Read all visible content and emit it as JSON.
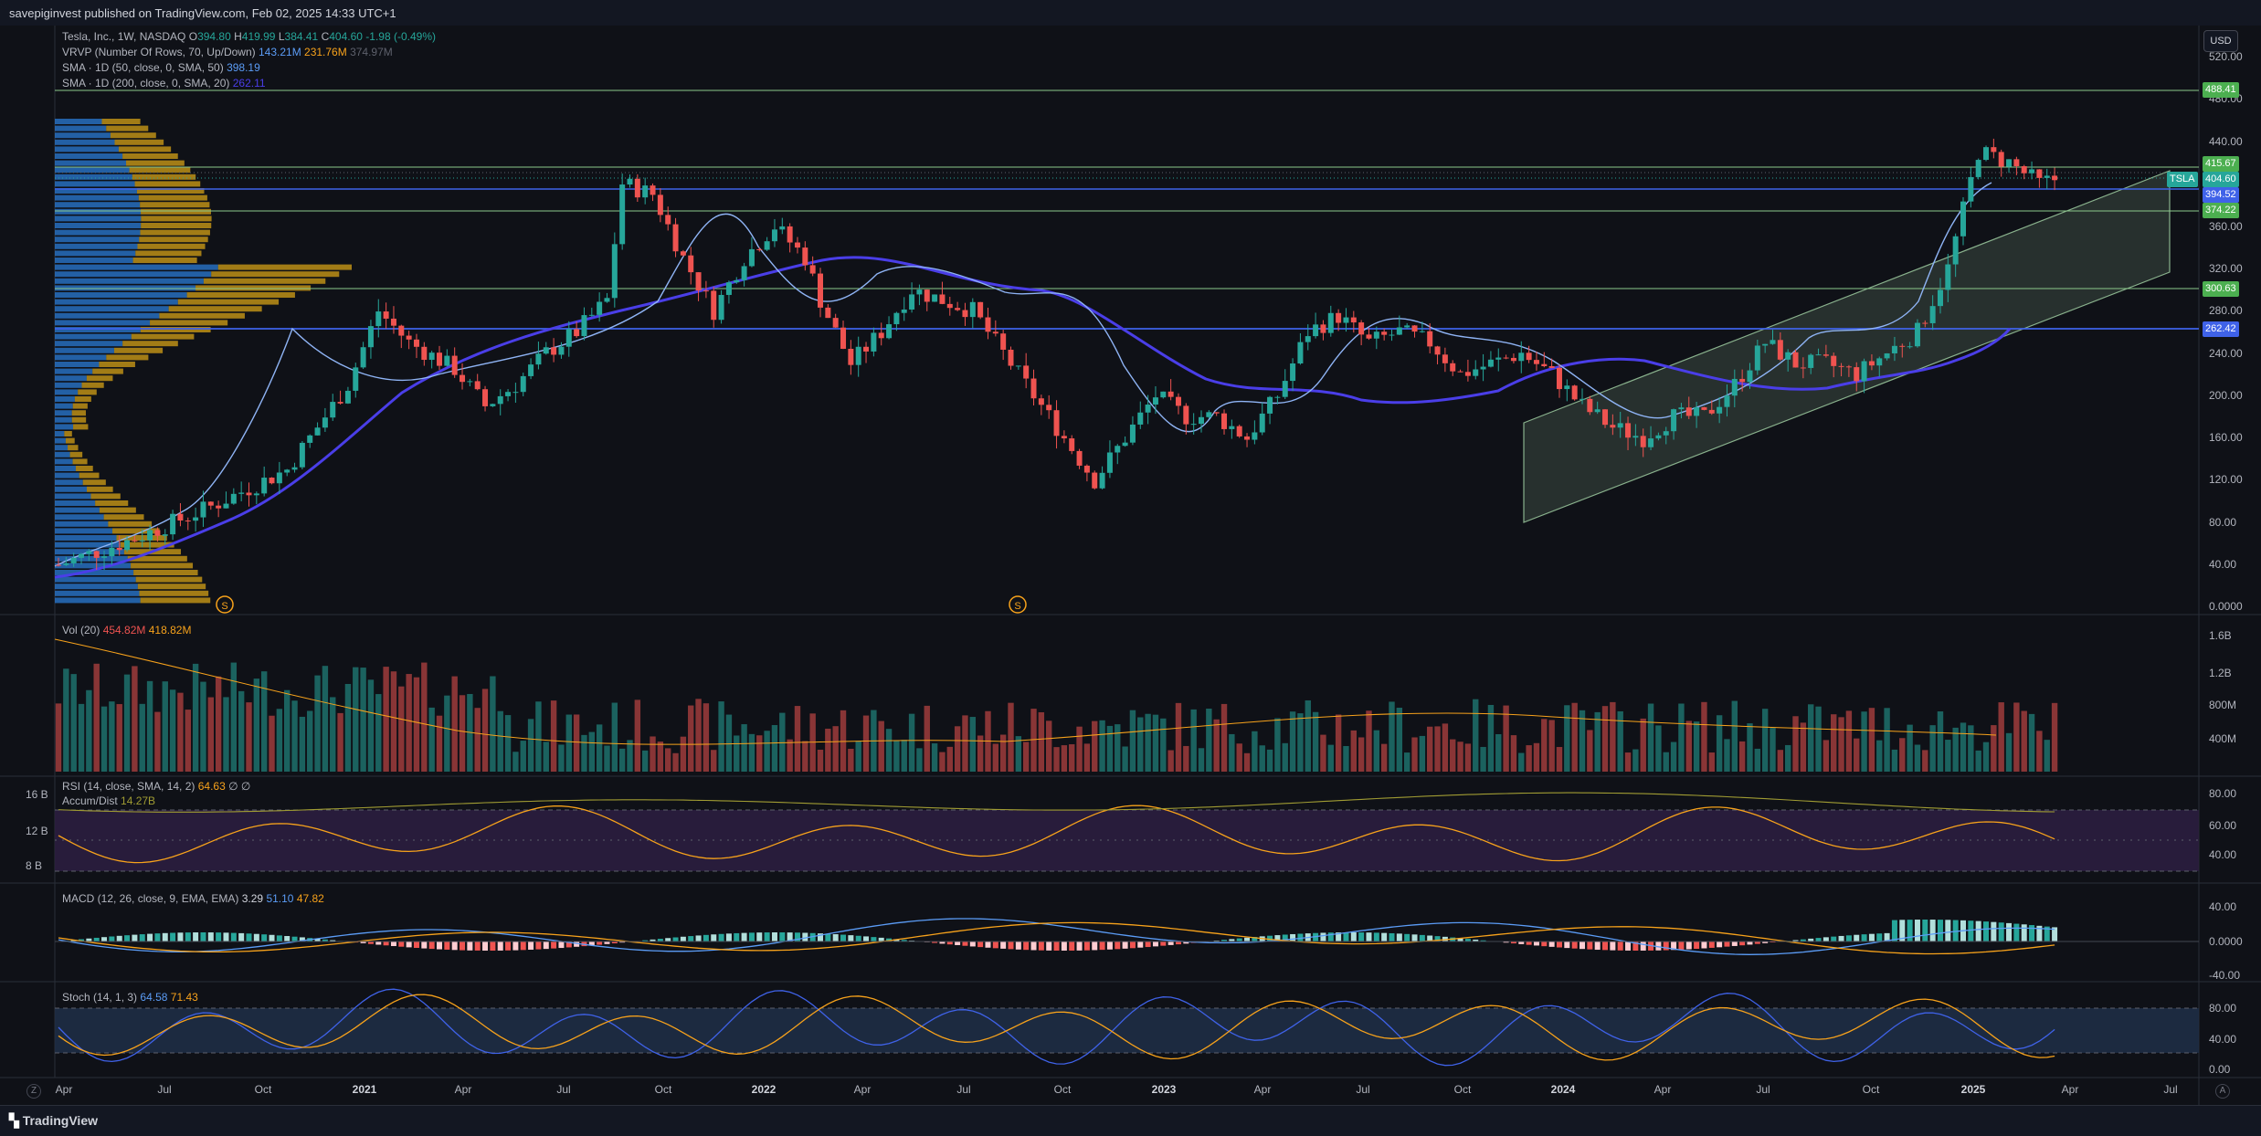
{
  "header": {
    "published": "savepiginvest published on TradingView.com, Feb 02, 2025 14:33 UTC+1"
  },
  "legend": {
    "symbol": "Tesla, Inc., 1W, NASDAQ",
    "open_label": "O",
    "open": "394.80",
    "high_label": "H",
    "high": "419.99",
    "low_label": "L",
    "low": "384.41",
    "close_label": "C",
    "close": "404.60",
    "change": "-1.98 (-0.49%)",
    "vrvp": "VRVP (Number Of Rows, 70, Up/Down)",
    "vrvp_v1": "143.21M",
    "vrvp_v2": "231.76M",
    "vrvp_v3": "374.97M",
    "sma50": "SMA · 1D (50, close, 0, SMA, 50)",
    "sma50_val": "398.19",
    "sma200": "SMA · 1D (200, close, 0, SMA, 20)",
    "sma200_val": "262.11"
  },
  "currency": "USD",
  "price_axis": [
    "520.00",
    "480.00",
    "440.00",
    "360.00",
    "320.00",
    "280.00",
    "240.00",
    "200.00",
    "160.00",
    "120.00",
    "80.00",
    "40.00",
    "0.0000"
  ],
  "price_tags": {
    "t488": "488.41",
    "t415": "415.67",
    "tsla": "TSLA",
    "t404": "404.60",
    "t394": "394.52",
    "t374": "374.22",
    "t300": "300.63",
    "t262": "262.42"
  },
  "colors": {
    "green": "#26a69a",
    "red": "#ef5350",
    "sma_fast": "#5b9cf6",
    "sma_slow": "#4a3ee8",
    "level_green": "#8bc98b",
    "level_blue": "#3f62e8",
    "channel": "#a5d6a7"
  },
  "dividend_icon": "S",
  "volume": {
    "label": "Vol (20)",
    "v1": "454.82M",
    "v2": "418.82M",
    "axis": [
      "1.6B",
      "1.2B",
      "800M",
      "400M"
    ]
  },
  "rsi": {
    "label": "RSI (14, close, SMA, 14, 2)",
    "v1": "64.63",
    "v2": "∅",
    "v3": "∅",
    "ad_label": "Accum/Dist",
    "ad_val": "14.27B",
    "axis": [
      "80.00",
      "60.00",
      "40.00"
    ],
    "left_axis": [
      "16 B",
      "12 B",
      "8 B"
    ]
  },
  "macd": {
    "label": "MACD (12, 26, close, 9, EMA, EMA)",
    "v1": "3.29",
    "v2": "51.10",
    "v3": "47.82",
    "axis": [
      "40.00",
      "0.0000",
      "-40.00"
    ]
  },
  "stoch": {
    "label": "Stoch (14, 1, 3)",
    "v1": "64.58",
    "v2": "71.43",
    "axis": [
      "80.00",
      "40.00",
      "0.00"
    ]
  },
  "time_axis": [
    {
      "t": "Apr"
    },
    {
      "t": "Jul"
    },
    {
      "t": "Oct"
    },
    {
      "t": "2021",
      "bold": true
    },
    {
      "t": "Apr"
    },
    {
      "t": "Jul"
    },
    {
      "t": "Oct"
    },
    {
      "t": "2022",
      "bold": true
    },
    {
      "t": "Apr"
    },
    {
      "t": "Jul"
    },
    {
      "t": "Oct"
    },
    {
      "t": "2023",
      "bold": true
    },
    {
      "t": "Apr"
    },
    {
      "t": "Jul"
    },
    {
      "t": "Oct"
    },
    {
      "t": "2024",
      "bold": true
    },
    {
      "t": "Apr"
    },
    {
      "t": "Jul"
    },
    {
      "t": "Oct"
    },
    {
      "t": "2025",
      "bold": true
    },
    {
      "t": "Apr"
    },
    {
      "t": "Jul"
    }
  ],
  "corner_left": "Z",
  "corner_right": "A",
  "footer": {
    "brand": "TradingView"
  }
}
